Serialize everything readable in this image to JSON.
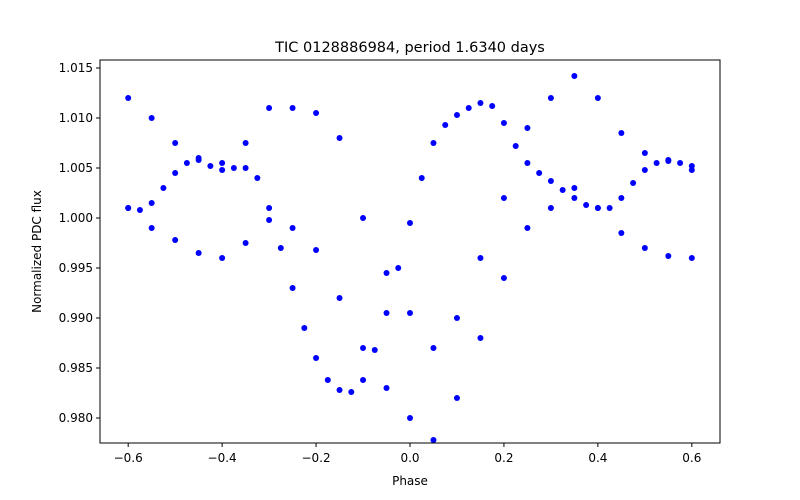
{
  "chart_data": {
    "type": "scatter",
    "title": "TIC 0128886984, period 1.6340 days",
    "xlabel": "Phase",
    "ylabel": "Normalized PDC flux",
    "xlim": [
      -0.66,
      0.66
    ],
    "ylim": [
      0.9775,
      1.0158
    ],
    "xticks": [
      -0.6,
      -0.4,
      -0.2,
      0.0,
      0.2,
      0.4,
      0.6
    ],
    "xtick_labels": [
      "−0.6",
      "−0.4",
      "−0.2",
      "0.0",
      "0.2",
      "0.4",
      "0.6"
    ],
    "yticks": [
      0.98,
      0.985,
      0.99,
      0.995,
      1.0,
      1.005,
      1.01,
      1.015
    ],
    "ytick_labels": [
      "0.980",
      "0.985",
      "0.990",
      "0.995",
      "1.000",
      "1.005",
      "1.010",
      "1.015"
    ],
    "grid": false,
    "marker_color": "#0000ff",
    "series": [
      {
        "description_points": "main folded light curve (dense)",
        "x": [
          -0.6,
          -0.575,
          -0.55,
          -0.525,
          -0.5,
          -0.475,
          -0.45,
          -0.425,
          -0.4,
          -0.375,
          -0.35,
          -0.325,
          -0.3,
          -0.275,
          -0.25,
          -0.225,
          -0.2,
          -0.175,
          -0.15,
          -0.125,
          -0.1,
          -0.075,
          -0.05,
          -0.025,
          0.0,
          0.025,
          0.05,
          0.075,
          0.1,
          0.125,
          0.15,
          0.175,
          0.2,
          0.225,
          0.25,
          0.275,
          0.3,
          0.325,
          0.35,
          0.375,
          0.4,
          0.425,
          0.45,
          0.475,
          0.5,
          0.525,
          0.55,
          0.575,
          0.6
        ],
        "y": [
          1.001,
          1.0008,
          1.0015,
          1.003,
          1.0045,
          1.0055,
          1.0058,
          1.0052,
          1.0048,
          1.005,
          1.005,
          1.004,
          1.001,
          0.997,
          0.993,
          0.989,
          0.986,
          0.9838,
          0.9828,
          0.9826,
          0.9838,
          0.9868,
          0.9905,
          0.995,
          0.9995,
          1.004,
          1.0075,
          1.0093,
          1.0103,
          1.011,
          1.0115,
          1.0112,
          1.0095,
          1.0072,
          1.0055,
          1.0045,
          1.0037,
          1.0028,
          1.002,
          1.0013,
          1.001,
          1.001,
          1.002,
          1.0035,
          1.0048,
          1.0055,
          1.0057,
          1.0055,
          1.0048
        ]
      },
      {
        "description_points": "scattered offset cycles (upper envelope)",
        "x": [
          -0.6,
          -0.55,
          -0.5,
          -0.45,
          -0.4,
          -0.35,
          -0.3,
          -0.25,
          -0.2,
          -0.15,
          -0.1,
          -0.05,
          0.0,
          0.05,
          0.1,
          0.15,
          0.2,
          0.25,
          0.3,
          0.35,
          0.4,
          0.45,
          0.5,
          0.55,
          0.6
        ],
        "y": [
          1.012,
          1.01,
          1.0075,
          1.006,
          1.0055,
          1.0075,
          1.011,
          1.011,
          1.0105,
          1.008,
          1.0,
          0.9945,
          0.9905,
          0.987,
          0.99,
          0.996,
          1.002,
          1.009,
          1.012,
          1.0142,
          1.012,
          1.0085,
          1.0065,
          1.0058,
          1.0052
        ]
      },
      {
        "description_points": "scattered offset cycles (lower envelope)",
        "x": [
          -0.6,
          -0.55,
          -0.5,
          -0.45,
          -0.4,
          -0.35,
          -0.3,
          -0.25,
          -0.2,
          -0.15,
          -0.1,
          -0.05,
          0.0,
          0.05,
          0.1,
          0.15,
          0.2,
          0.25,
          0.3,
          0.35,
          0.4,
          0.45,
          0.5,
          0.55,
          0.6
        ],
        "y": [
          1.001,
          0.999,
          0.9978,
          0.9965,
          0.996,
          0.9975,
          0.9998,
          0.999,
          0.9968,
          0.992,
          0.987,
          0.983,
          0.98,
          0.9778,
          0.982,
          0.988,
          0.994,
          0.999,
          1.001,
          1.003,
          1.001,
          0.9985,
          0.997,
          0.9962,
          0.996
        ]
      }
    ]
  }
}
